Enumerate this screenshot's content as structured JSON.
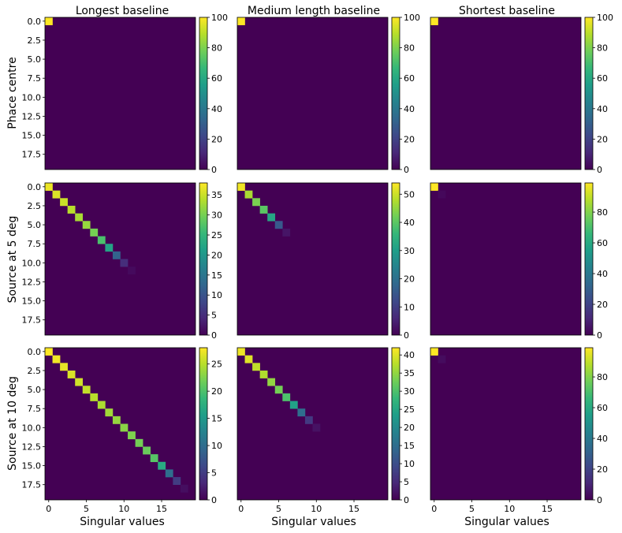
{
  "figure": {
    "column_titles": [
      "Longest baseline",
      "Medium length baseline",
      "Shortest baseline"
    ],
    "row_labels": [
      "Phace centre",
      "Source at 5 deg",
      "Source at 10 deg"
    ],
    "xlabel": "Singular values"
  },
  "chart_data": [
    {
      "type": "heatmap",
      "panel": "Phace centre / Longest baseline",
      "size": 20,
      "diagonal": [
        100
      ],
      "colorbar_ticks": [
        0,
        20,
        40,
        60,
        80,
        100
      ],
      "vmax": 100,
      "yticks": [
        "0.0",
        "2.5",
        "5.0",
        "7.5",
        "10.0",
        "12.5",
        "15.0",
        "17.5"
      ],
      "xticks": []
    },
    {
      "type": "heatmap",
      "panel": "Phace centre / Medium length baseline",
      "size": 20,
      "diagonal": [
        100
      ],
      "colorbar_ticks": [
        0,
        20,
        40,
        60,
        80,
        100
      ],
      "vmax": 100,
      "yticks": [],
      "xticks": []
    },
    {
      "type": "heatmap",
      "panel": "Phace centre / Shortest baseline",
      "size": 20,
      "diagonal": [
        100
      ],
      "colorbar_ticks": [
        0,
        20,
        40,
        60,
        80,
        100
      ],
      "vmax": 100,
      "yticks": [],
      "xticks": []
    },
    {
      "type": "heatmap",
      "panel": "Source at 5 deg / Longest baseline",
      "size": 20,
      "diagonal": [
        37,
        36,
        35,
        34,
        33,
        32,
        30,
        27,
        22,
        12,
        5,
        1
      ],
      "colorbar_ticks": [
        0,
        5,
        10,
        15,
        20,
        25,
        30,
        35
      ],
      "vmax": 38,
      "yticks": [
        "0.0",
        "2.5",
        "5.0",
        "7.5",
        "10.0",
        "12.5",
        "15.0",
        "17.5"
      ],
      "xticks": []
    },
    {
      "type": "heatmap",
      "panel": "Source at 5 deg / Medium length baseline",
      "size": 20,
      "diagonal": [
        53,
        47,
        43,
        40,
        32,
        15,
        3
      ],
      "colorbar_ticks": [
        0,
        10,
        20,
        30,
        40,
        50
      ],
      "vmax": 54,
      "yticks": [],
      "xticks": []
    },
    {
      "type": "heatmap",
      "panel": "Source at 5 deg / Shortest baseline",
      "size": 20,
      "diagonal": [
        99,
        2
      ],
      "colorbar_ticks": [
        0,
        20,
        40,
        60,
        80
      ],
      "vmax": 99,
      "yticks": [],
      "xticks": []
    },
    {
      "type": "heatmap",
      "panel": "Source at 10 deg / Longest baseline",
      "size": 20,
      "diagonal": [
        28,
        27.5,
        27,
        26.5,
        26,
        25.5,
        25,
        24.5,
        24,
        23.5,
        23,
        22.5,
        22,
        21.5,
        20.5,
        17,
        10,
        5,
        1
      ],
      "colorbar_ticks": [
        0,
        5,
        10,
        15,
        20,
        25
      ],
      "vmax": 28,
      "yticks": [
        "0.0",
        "2.5",
        "5.0",
        "7.5",
        "10.0",
        "12.5",
        "15.0",
        "17.5"
      ],
      "xticks": [
        "0",
        "5",
        "10",
        "15"
      ]
    },
    {
      "type": "heatmap",
      "panel": "Source at 10 deg / Medium length baseline",
      "size": 20,
      "diagonal": [
        41,
        40,
        38,
        37,
        35,
        33,
        30,
        24,
        15,
        7,
        2
      ],
      "colorbar_ticks": [
        0,
        5,
        10,
        15,
        20,
        25,
        30,
        35,
        40
      ],
      "vmax": 42,
      "yticks": [],
      "xticks": [
        "0",
        "5",
        "10",
        "15"
      ]
    },
    {
      "type": "heatmap",
      "panel": "Source at 10 deg / Shortest baseline",
      "size": 20,
      "diagonal": [
        99,
        3
      ],
      "colorbar_ticks": [
        0,
        20,
        40,
        60,
        80
      ],
      "vmax": 99,
      "yticks": [],
      "xticks": [
        "0",
        "5",
        "10",
        "15"
      ]
    }
  ]
}
